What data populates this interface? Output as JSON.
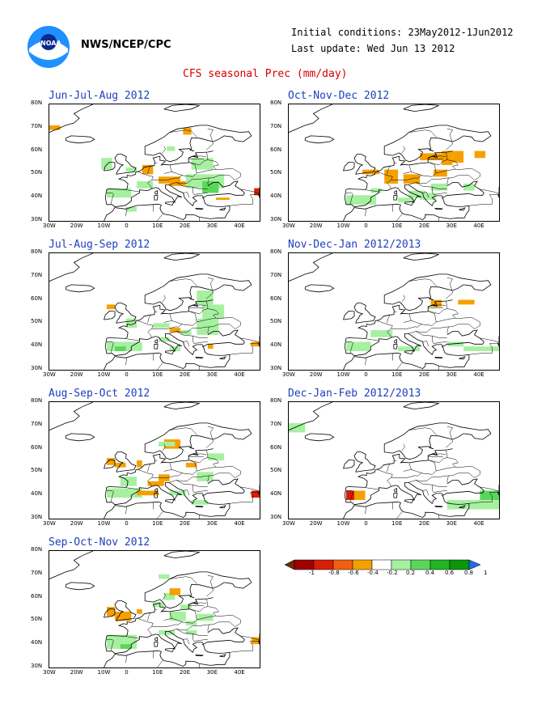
{
  "header": {
    "agency": "NWS/NCEP/CPC",
    "initial": "Initial conditions: 23May2012-1Jun2012",
    "update": "Last update: Wed Jun 13 2012",
    "title": "CFS seasonal Prec (mm/day)"
  },
  "logo_icon": "noaa-logo-icon",
  "axes": {
    "lat_labels": [
      "80N",
      "70N",
      "60N",
      "50N",
      "40N",
      "30N"
    ],
    "lon_labels": [
      "30W",
      "20W",
      "10W",
      "0",
      "10E",
      "20E",
      "30E",
      "40E"
    ]
  },
  "panels": [
    {
      "title": "Jun-Jul-Aug 2012"
    },
    {
      "title": "Oct-Nov-Dec 2012"
    },
    {
      "title": "Jul-Aug-Sep 2012"
    },
    {
      "title": "Nov-Dec-Jan 2012/2013"
    },
    {
      "title": "Aug-Sep-Oct 2012"
    },
    {
      "title": "Dec-Jan-Feb 2012/2013"
    },
    {
      "title": "Sep-Oct-Nov 2012"
    }
  ],
  "colorbar": {
    "labels": [
      "-1",
      "-0.8",
      "-0.6",
      "-0.4",
      "-0.2",
      "0.2",
      "0.4",
      "0.6",
      "0.8",
      "1"
    ],
    "colors": [
      "#6b2a06",
      "#a00000",
      "#d81e05",
      "#f06010",
      "#f5a000",
      "#ffffff",
      "#a6f0a0",
      "#5ad75a",
      "#22b422",
      "#0a960a",
      "#1e6ee6"
    ]
  }
}
